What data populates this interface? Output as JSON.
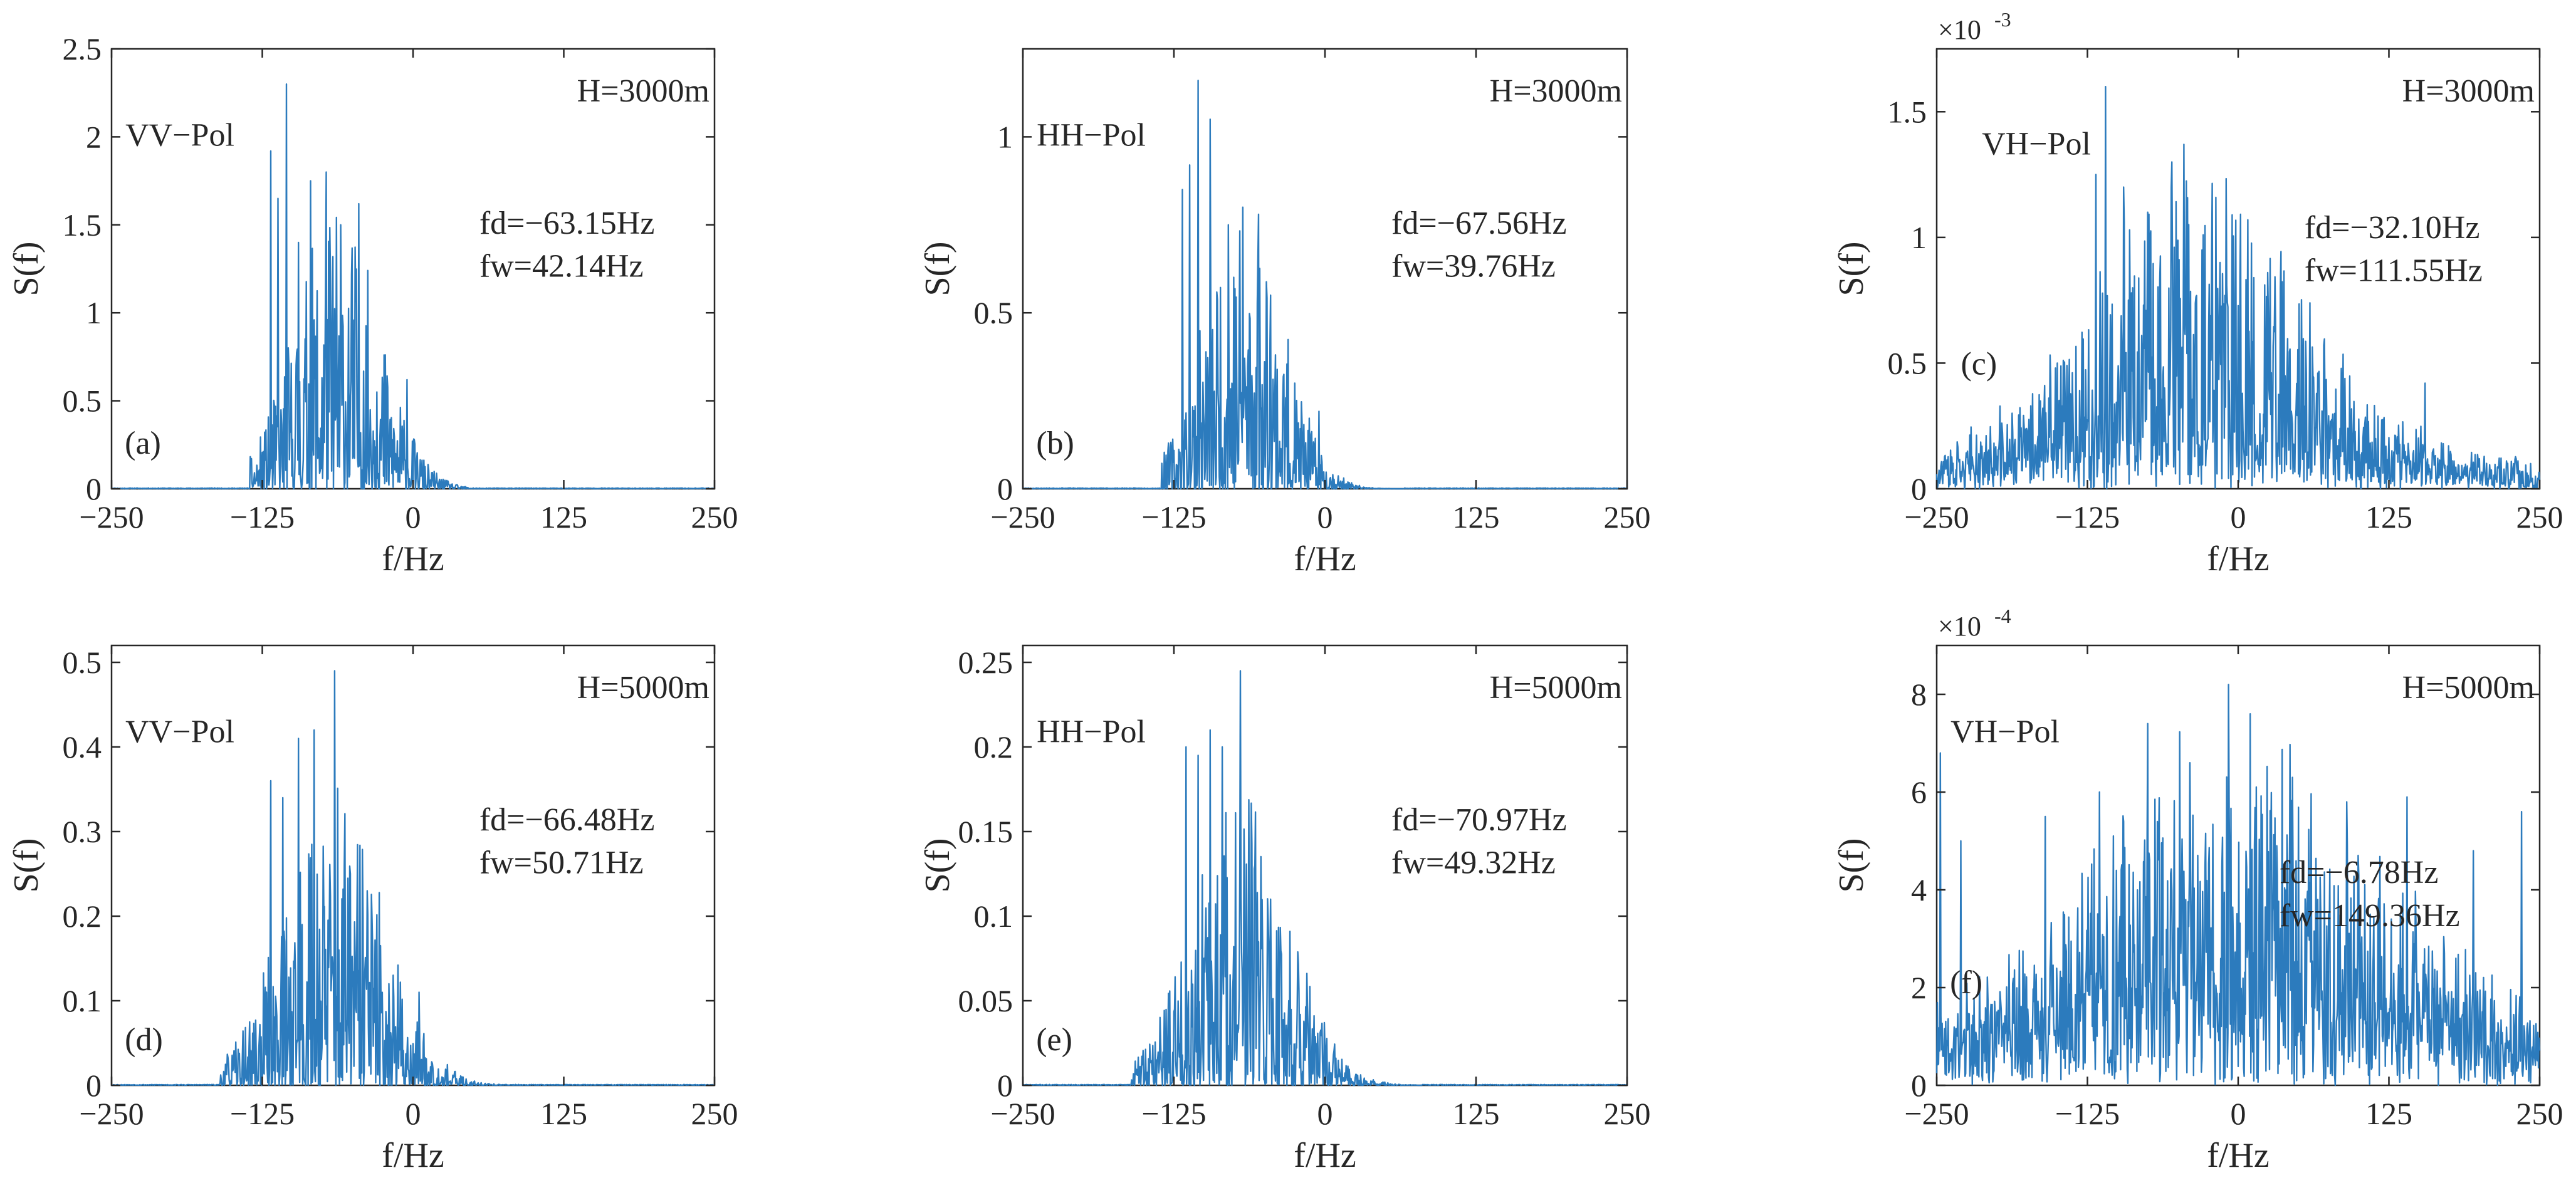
{
  "colors": {
    "line": "#2c7bbd",
    "axes": "#262626",
    "background": "#ffffff"
  },
  "chart_data": [
    {
      "type": "line",
      "panel": "(a)",
      "polarization": "VV−Pol",
      "height": "H=3000m",
      "fd": "fd=−63.15Hz",
      "fw": "fw=42.14Hz",
      "xlabel": "f/Hz",
      "ylabel": "S(f)",
      "xlim": [
        -250,
        250
      ],
      "xticks": [
        -250,
        -125,
        0,
        125,
        250
      ],
      "xtick_labels": [
        "−250",
        "−125",
        "0",
        "125",
        "250"
      ],
      "ylim": [
        0,
        2.5
      ],
      "yticks": [
        0,
        0.5,
        1,
        1.5,
        2,
        2.5
      ],
      "ytick_labels": [
        "0",
        "0.5",
        "1",
        "1.5",
        "2",
        "2.5"
      ],
      "exponent": null,
      "spectrum": {
        "support": [
          -135,
          60
        ],
        "center": -63.15,
        "width": 42.14,
        "peak": 2.3,
        "floor": 0,
        "seed": 11,
        "spikes": [
          [
            -118,
            1.92
          ],
          [
            -112,
            1.65
          ],
          [
            -105,
            2.3
          ],
          [
            -95,
            1.4
          ],
          [
            -85,
            1.75
          ],
          [
            -72,
            1.8
          ],
          [
            -60,
            1.5
          ],
          [
            -45,
            1.62
          ],
          [
            -30,
            0.55
          ],
          [
            -5,
            0.62
          ]
        ]
      }
    },
    {
      "type": "line",
      "panel": "(b)",
      "polarization": "HH−Pol",
      "height": "H=3000m",
      "fd": "fd=−67.56Hz",
      "fw": "fw=39.76Hz",
      "xlabel": "f/Hz",
      "ylabel": "S(f)",
      "xlim": [
        -250,
        250
      ],
      "xticks": [
        -250,
        -125,
        0,
        125,
        250
      ],
      "xtick_labels": [
        "−250",
        "−125",
        "0",
        "125",
        "250"
      ],
      "ylim": [
        0,
        1.25
      ],
      "yticks": [
        0,
        0.5,
        1
      ],
      "ytick_labels": [
        "0",
        "0.5",
        "1"
      ],
      "exponent": null,
      "spectrum": {
        "support": [
          -135,
          65
        ],
        "center": -67.56,
        "width": 39.76,
        "peak": 1.16,
        "floor": 0,
        "seed": 23,
        "spikes": [
          [
            -118,
            0.85
          ],
          [
            -112,
            0.92
          ],
          [
            -105,
            1.16
          ],
          [
            -95,
            1.05
          ],
          [
            -80,
            0.75
          ],
          [
            -68,
            0.8
          ],
          [
            -55,
            0.78
          ],
          [
            -45,
            0.55
          ],
          [
            -25,
            0.3
          ],
          [
            -5,
            0.22
          ]
        ]
      }
    },
    {
      "type": "line",
      "panel": "(c)",
      "polarization": "VH−Pol",
      "height": "H=3000m",
      "fd": "fd=−32.10Hz",
      "fw": "fw=111.55Hz",
      "xlabel": "f/Hz",
      "ylabel": "S(f)",
      "xlim": [
        -250,
        250
      ],
      "xticks": [
        -250,
        -125,
        0,
        125,
        250
      ],
      "xtick_labels": [
        "−250",
        "−125",
        "0",
        "125",
        "250"
      ],
      "ylim": [
        0,
        1.75
      ],
      "yticks": [
        0,
        0.5,
        1,
        1.5
      ],
      "ytick_labels": [
        "0",
        "0.5",
        "1",
        "1.5"
      ],
      "exponent": "×10",
      "exponent_power": "-3",
      "spectrum": {
        "support": [
          -250,
          250
        ],
        "center": -32.1,
        "width": 111.55,
        "peak": 1.6,
        "floor": 0.12,
        "seed": 37,
        "spikes": [
          [
            -118,
            1.25
          ],
          [
            -110,
            1.6
          ],
          [
            -95,
            1.2
          ],
          [
            -75,
            1.1
          ],
          [
            -55,
            1.3
          ],
          [
            -45,
            1.37
          ],
          [
            -30,
            0.95
          ],
          [
            8,
            1.07
          ],
          [
            35,
            0.8
          ],
          [
            -150,
            0.5
          ],
          [
            155,
            0.42
          ]
        ]
      }
    },
    {
      "type": "line",
      "panel": "(d)",
      "polarization": "VV−Pol",
      "height": "H=5000m",
      "fd": "fd=−66.48Hz",
      "fw": "fw=50.71Hz",
      "xlabel": "f/Hz",
      "ylabel": "S(f)",
      "xlim": [
        -250,
        250
      ],
      "xticks": [
        -250,
        -125,
        0,
        125,
        250
      ],
      "xtick_labels": [
        "−250",
        "−125",
        "0",
        "125",
        "250"
      ],
      "ylim": [
        0,
        0.52
      ],
      "yticks": [
        0,
        0.1,
        0.2,
        0.3,
        0.4,
        0.5
      ],
      "ytick_labels": [
        "0",
        "0.1",
        "0.2",
        "0.3",
        "0.4",
        "0.5"
      ],
      "exponent": null,
      "spectrum": {
        "support": [
          -160,
          75
        ],
        "center": -66.48,
        "width": 50.71,
        "peak": 0.49,
        "floor": 0,
        "seed": 53,
        "spikes": [
          [
            -118,
            0.36
          ],
          [
            -108,
            0.34
          ],
          [
            -95,
            0.41
          ],
          [
            -82,
            0.42
          ],
          [
            -65,
            0.49
          ],
          [
            -52,
            0.25
          ],
          [
            -38,
            0.23
          ],
          [
            -20,
            0.12
          ],
          [
            5,
            0.11
          ]
        ]
      }
    },
    {
      "type": "line",
      "panel": "(e)",
      "polarization": "HH−Pol",
      "height": "H=5000m",
      "fd": "fd=−70.97Hz",
      "fw": "fw=49.32Hz",
      "xlabel": "f/Hz",
      "ylabel": "S(f)",
      "xlim": [
        -250,
        250
      ],
      "xticks": [
        -250,
        -125,
        0,
        125,
        250
      ],
      "xtick_labels": [
        "−250",
        "−125",
        "0",
        "125",
        "250"
      ],
      "ylim": [
        0,
        0.26
      ],
      "yticks": [
        0,
        0.05,
        0.1,
        0.15,
        0.2,
        0.25
      ],
      "ytick_labels": [
        "0",
        "0.05",
        "0.1",
        "0.15",
        "0.2",
        "0.25"
      ],
      "exponent": null,
      "spectrum": {
        "support": [
          -160,
          80
        ],
        "center": -70.97,
        "width": 49.32,
        "peak": 0.245,
        "floor": 0,
        "seed": 71,
        "spikes": [
          [
            -115,
            0.2
          ],
          [
            -105,
            0.195
          ],
          [
            -95,
            0.21
          ],
          [
            -85,
            0.2
          ],
          [
            -70,
            0.245
          ],
          [
            -58,
            0.13
          ],
          [
            -45,
            0.11
          ],
          [
            -30,
            0.05
          ]
        ]
      }
    },
    {
      "type": "line",
      "panel": "(f)",
      "polarization": "VH−Pol",
      "height": "H=5000m",
      "fd": "fd=−6.78Hz",
      "fw": "fw=149.36Hz",
      "xlabel": "f/Hz",
      "ylabel": "S(f)",
      "xlim": [
        -250,
        250
      ],
      "xticks": [
        -250,
        -125,
        0,
        125,
        250
      ],
      "xtick_labels": [
        "−250",
        "−125",
        "0",
        "125",
        "250"
      ],
      "ylim": [
        0,
        9
      ],
      "yticks": [
        0,
        2,
        4,
        6,
        8
      ],
      "ytick_labels": [
        "0",
        "2",
        "4",
        "6",
        "8"
      ],
      "exponent": "×10",
      "exponent_power": "-4",
      "spectrum": {
        "support": [
          -250,
          250
        ],
        "center": -6.78,
        "width": 149.36,
        "peak": 8.2,
        "floor": 1.2,
        "seed": 89,
        "spikes": [
          [
            -247,
            6.8
          ],
          [
            -230,
            5.0
          ],
          [
            -160,
            5.5
          ],
          [
            -115,
            6.0
          ],
          [
            -75,
            7.4
          ],
          [
            -40,
            6.6
          ],
          [
            -8,
            8.2
          ],
          [
            10,
            7.6
          ],
          [
            45,
            6.3
          ],
          [
            90,
            5.8
          ],
          [
            140,
            5.9
          ],
          [
            195,
            4.8
          ],
          [
            235,
            5.6
          ]
        ]
      }
    }
  ]
}
